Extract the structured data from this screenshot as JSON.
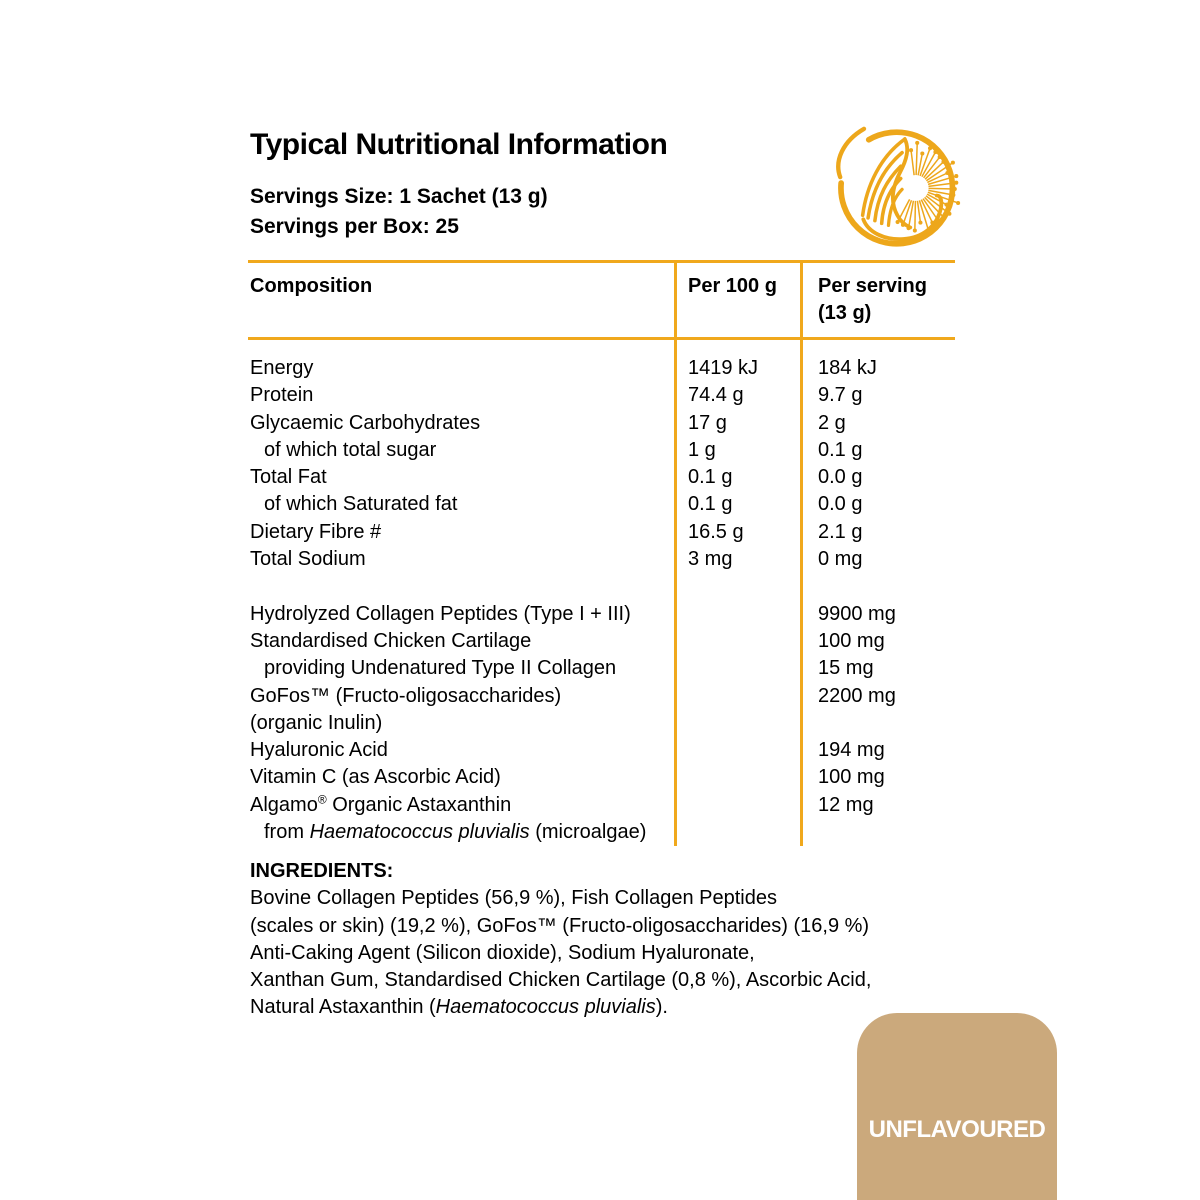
{
  "colors": {
    "accent_gold": "#F0A81C",
    "logo_gold": "#EDA71B",
    "badge_tan": "#CBA97C",
    "badge_text": "#ffffff",
    "text": "#000000",
    "background": "#ffffff"
  },
  "header": {
    "title": "Typical Nutritional Information",
    "serving_size": "Servings Size: 1 Sachet (13 g)",
    "servings_per_box": "Servings per Box: 25",
    "logo_icon": "swan-dandelion-logo"
  },
  "table": {
    "columns": [
      {
        "label": "Composition"
      },
      {
        "label": "Per 100 g"
      },
      {
        "label": "Per serving",
        "sub": "(13 g)"
      }
    ],
    "rows": [
      {
        "label": [
          {
            "t": "Energy"
          }
        ],
        "per100": "1419 kJ",
        "serving": "184 kJ"
      },
      {
        "label": [
          {
            "t": "Protein"
          }
        ],
        "per100": "74.4 g",
        "serving": "9.7 g"
      },
      {
        "label": [
          {
            "t": "Glycaemic Carbohydrates"
          }
        ],
        "per100": "17 g",
        "serving": "2 g"
      },
      {
        "indent": true,
        "label": [
          {
            "t": "of which total sugar"
          }
        ],
        "per100": "1 g",
        "serving": "0.1 g"
      },
      {
        "label": [
          {
            "t": "Total Fat"
          }
        ],
        "per100": "0.1 g",
        "serving": "0.0 g"
      },
      {
        "indent": true,
        "label": [
          {
            "t": "of which Saturated fat"
          }
        ],
        "per100": "0.1 g",
        "serving": "0.0 g"
      },
      {
        "label": [
          {
            "t": "Dietary Fibre #"
          }
        ],
        "per100": "16.5 g",
        "serving": "2.1 g"
      },
      {
        "label": [
          {
            "t": "Total Sodium"
          }
        ],
        "per100": "3 mg",
        "serving": "0 mg"
      },
      {
        "spacer": true
      },
      {
        "label": [
          {
            "t": "Hydrolyzed Collagen Peptides (Type I + III)"
          }
        ],
        "per100": "",
        "serving": "9900 mg"
      },
      {
        "label": [
          {
            "t": "Standardised Chicken Cartilage"
          }
        ],
        "per100": "",
        "serving": "100 mg"
      },
      {
        "indent": true,
        "label": [
          {
            "t": "providing Undenatured Type II Collagen"
          }
        ],
        "per100": "",
        "serving": "15 mg"
      },
      {
        "label": [
          {
            "t": "GoFos™ (Fructo-oligosaccharides)"
          }
        ],
        "per100": "",
        "serving": "2200 mg"
      },
      {
        "label": [
          {
            "t": "(organic Inulin)"
          }
        ],
        "per100": "",
        "serving": ""
      },
      {
        "label": [
          {
            "t": "Hyaluronic Acid"
          }
        ],
        "per100": "",
        "serving": "194 mg"
      },
      {
        "label": [
          {
            "t": "Vitamin C (as Ascorbic Acid)"
          }
        ],
        "per100": "",
        "serving": "100 mg"
      },
      {
        "label": [
          {
            "t": "Algamo"
          },
          {
            "t": "®",
            "sup": true
          },
          {
            "t": " Organic Astaxanthin"
          }
        ],
        "per100": "",
        "serving": "12 mg"
      },
      {
        "indent": true,
        "label": [
          {
            "t": "from "
          },
          {
            "t": "Haematococcus pluvialis",
            "i": true
          },
          {
            "t": " (microalgae)"
          }
        ],
        "per100": "",
        "serving": ""
      }
    ]
  },
  "ingredients": {
    "heading": "INGREDIENTS:",
    "lines": [
      [
        {
          "t": "Bovine Collagen Peptides (56,9 %), Fish Collagen Peptides"
        }
      ],
      [
        {
          "t": "(scales or skin) (19,2 %), GoFos™ (Fructo-oligosaccharides) (16,9 %)"
        }
      ],
      [
        {
          "t": "Anti-Caking Agent (Silicon dioxide), Sodium Hyaluronate,"
        }
      ],
      [
        {
          "t": "Xanthan Gum, Standardised Chicken Cartilage (0,8 %), Ascorbic Acid,"
        }
      ],
      [
        {
          "t": "Natural Astaxanthin ("
        },
        {
          "t": "Haematococcus pluvialis",
          "i": true
        },
        {
          "t": ")."
        }
      ]
    ]
  },
  "badge": {
    "label": "UNFLAVOURED"
  }
}
